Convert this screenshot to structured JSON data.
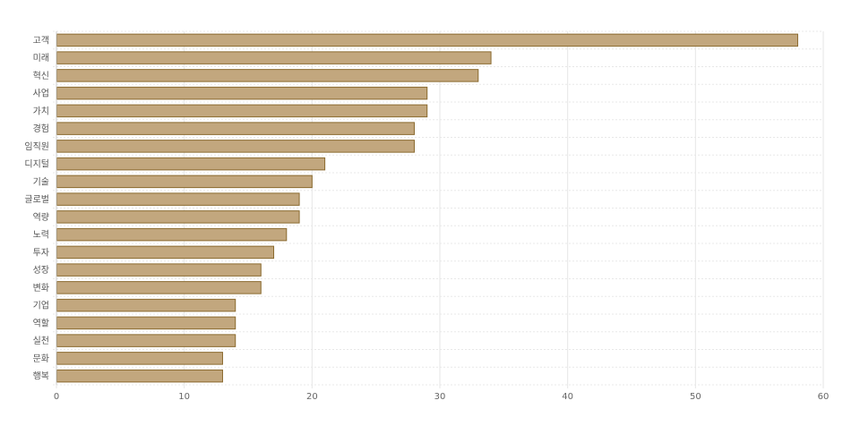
{
  "chart_data": {
    "type": "bar",
    "orientation": "horizontal",
    "categories": [
      "고객",
      "미래",
      "혁신",
      "사업",
      "가치",
      "경험",
      "임직원",
      "디지털",
      "기술",
      "글로벌",
      "역량",
      "노력",
      "투자",
      "성장",
      "변화",
      "기업",
      "역할",
      "실천",
      "문화",
      "행복"
    ],
    "values": [
      58,
      34,
      33,
      29,
      29,
      28,
      28,
      21,
      20,
      19,
      19,
      18,
      17,
      16,
      16,
      14,
      14,
      14,
      13,
      13
    ],
    "xlim": [
      0,
      60
    ],
    "xticks": [
      0,
      10,
      20,
      30,
      40,
      50,
      60
    ],
    "title": "",
    "xlabel": "",
    "ylabel": "",
    "grid": true,
    "legend": "none",
    "colors": {
      "bar_fill": "#c2a77e",
      "bar_stroke": "#8a6a2e"
    }
  }
}
